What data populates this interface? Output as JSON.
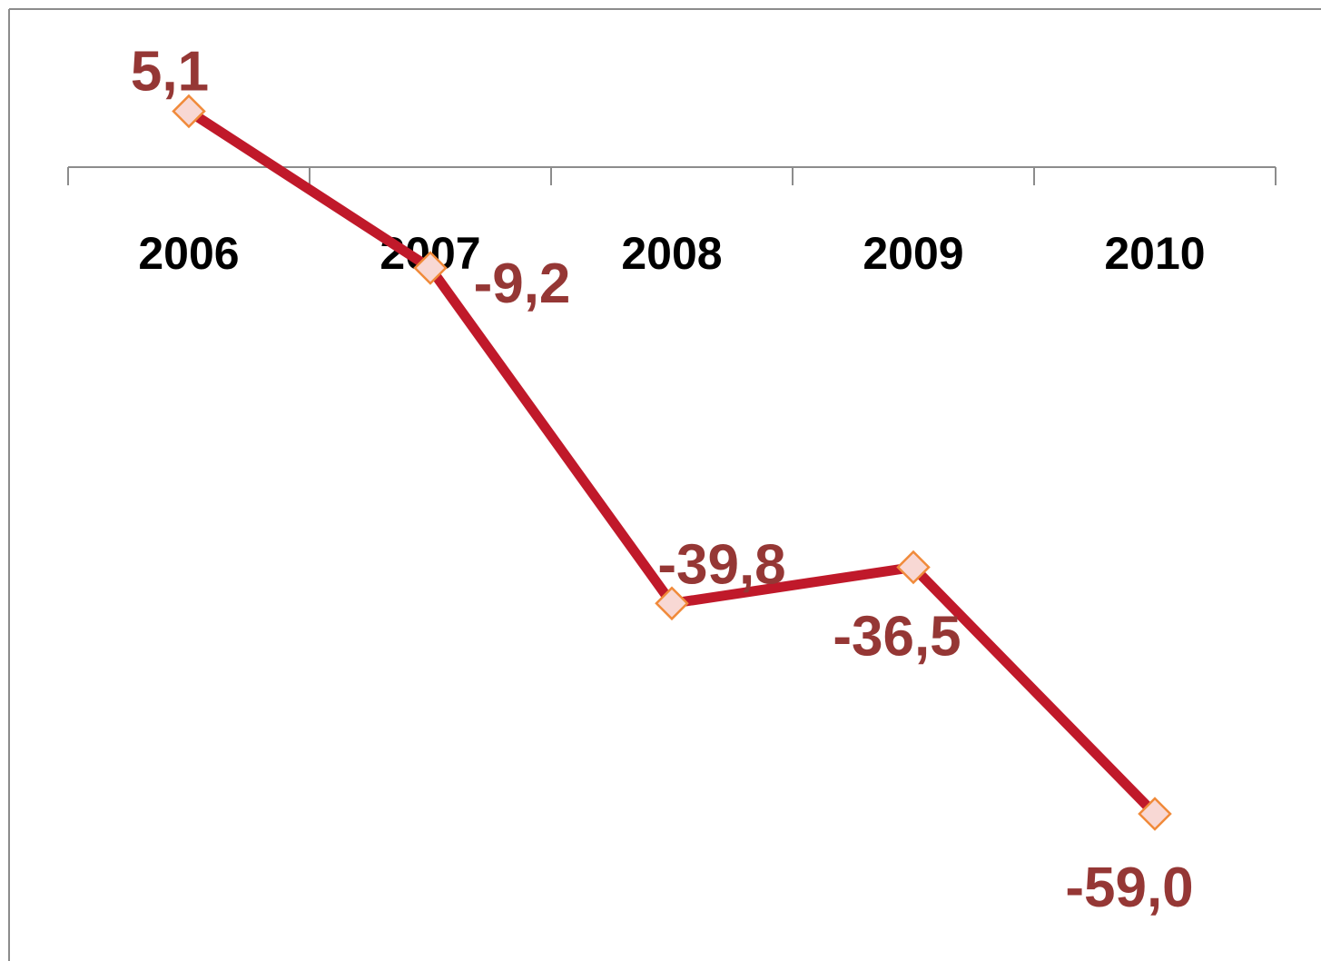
{
  "chart_data": {
    "type": "line",
    "categories": [
      "2006",
      "2007",
      "2008",
      "2009",
      "2010"
    ],
    "series": [
      {
        "values": [
          5.1,
          -9.2,
          -39.8,
          -36.5,
          -59.0
        ],
        "data_labels": [
          "5,1",
          "-9,2",
          "-39,8",
          "-36,5",
          "-59,0"
        ]
      }
    ],
    "title": "",
    "xlabel": "",
    "ylabel": "",
    "grid": false,
    "legend": "none",
    "colors": {
      "line": "#C0192A",
      "marker_fill": "#F8D8D4",
      "marker_stroke": "#F08A3A",
      "data_label": "#953735",
      "axis": "#8C8C8C",
      "frame": "#8C8C8C"
    }
  }
}
